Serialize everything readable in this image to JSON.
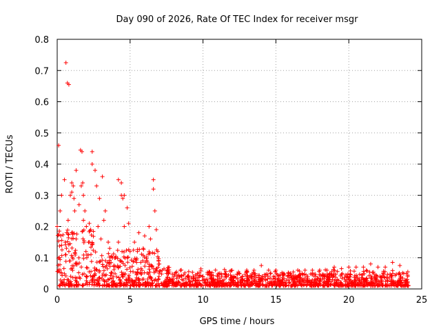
{
  "chart_data": {
    "type": "scatter",
    "title": "Day 090 of 2026, Rate Of TEC Index for receiver msgr",
    "xlabel": "GPS time / hours",
    "ylabel": "ROTI / TECUs",
    "xlim": [
      0,
      25
    ],
    "ylim": [
      0,
      0.8
    ],
    "xticks": [
      0,
      5,
      10,
      15,
      20,
      25
    ],
    "yticks": [
      0,
      0.1,
      0.2,
      0.3,
      0.4,
      0.5,
      0.6,
      0.7,
      0.8
    ],
    "xtick_labels": [
      "0",
      "5",
      "10",
      "15",
      "20",
      "25"
    ],
    "ytick_labels": [
      "0",
      "0.1",
      "0.2",
      "0.3",
      "0.4",
      "0.5",
      "0.6",
      "0.7",
      "0.8"
    ],
    "grid": true,
    "marker": "+",
    "color": "#ff0000",
    "series": [
      {
        "name": "ROTI",
        "x": [
          0.0,
          0.1,
          0.2,
          0.3,
          0.5,
          0.6,
          0.7,
          0.8,
          0.9,
          1.0,
          1.1,
          1.2,
          1.3,
          1.5,
          1.6,
          1.7,
          1.8,
          1.9,
          2.0,
          2.2,
          2.4,
          2.6,
          2.8,
          3.0,
          3.2,
          3.5,
          3.8,
          4.0,
          4.2,
          4.4,
          4.6,
          4.8,
          5.0,
          5.3,
          5.6,
          6.0,
          6.3,
          6.6,
          6.8,
          7.0,
          7.5,
          8.0,
          8.5,
          9.0,
          9.5,
          10.0,
          10.5,
          11.0,
          11.5,
          12.0,
          12.5,
          13.0,
          13.5,
          14.0,
          14.5,
          15.0,
          15.5,
          16.0,
          16.5,
          17.0,
          17.5,
          18.0,
          18.5,
          19.0,
          19.5,
          20.0,
          20.5,
          21.0,
          21.5,
          22.0,
          22.5,
          23.0,
          23.5,
          24.0,
          0.15,
          0.55,
          0.65,
          0.75,
          1.0,
          1.15,
          1.65,
          1.75,
          2.4,
          2.7,
          2.9,
          3.1,
          4.4,
          4.5,
          4.6,
          6.6,
          6.7,
          0.3,
          0.8,
          1.3,
          1.8,
          2.3,
          3.3,
          3.6,
          4.2,
          4.9,
          5.5,
          5.9,
          6.4,
          6.9,
          7.2
        ],
        "y": [
          0.2,
          0.46,
          0.25,
          0.3,
          0.35,
          0.725,
          0.66,
          0.655,
          0.3,
          0.34,
          0.33,
          0.25,
          0.38,
          0.27,
          0.445,
          0.44,
          0.3,
          0.25,
          0.2,
          0.21,
          0.44,
          0.38,
          0.2,
          0.16,
          0.22,
          0.15,
          0.1,
          0.1,
          0.35,
          0.3,
          0.2,
          0.26,
          0.12,
          0.15,
          0.18,
          0.17,
          0.2,
          0.35,
          0.19,
          0.08,
          0.05,
          0.04,
          0.04,
          0.04,
          0.035,
          0.04,
          0.035,
          0.04,
          0.05,
          0.04,
          0.05,
          0.06,
          0.06,
          0.075,
          0.06,
          0.06,
          0.05,
          0.05,
          0.06,
          0.06,
          0.06,
          0.06,
          0.06,
          0.07,
          0.065,
          0.07,
          0.07,
          0.07,
          0.08,
          0.07,
          0.07,
          0.085,
          0.075,
          0.03,
          0.1,
          0.15,
          0.18,
          0.22,
          0.31,
          0.29,
          0.33,
          0.34,
          0.4,
          0.33,
          0.29,
          0.36,
          0.34,
          0.29,
          0.3,
          0.32,
          0.25,
          0.14,
          0.12,
          0.16,
          0.22,
          0.19,
          0.25,
          0.13,
          0.15,
          0.21,
          0.12,
          0.13,
          0.16,
          0.12,
          0.06
        ]
      }
    ],
    "note": "Dense cloud of near-zero values (about 0.0-0.1) spans the full 0-24 h range; points listed are representative readings."
  }
}
